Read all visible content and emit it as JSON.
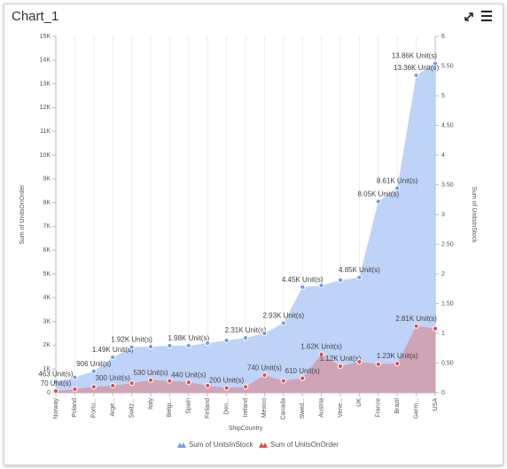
{
  "chart_data": {
    "type": "area",
    "title": "Chart_1",
    "x_label": "ShipCountry",
    "y_label": "Sum of UnitsOnOrder",
    "y2_label": "Sum of UnitsInStock",
    "categories": [
      "Norway",
      "Poland",
      "Portu...",
      "Arge...",
      "Switz...",
      "Italy",
      "Belgi...",
      "Spain",
      "Finland",
      "Den...",
      "Ireland",
      "Mexico",
      "Canada",
      "Swed...",
      "Austria",
      "Vene...",
      "UK",
      "France",
      "Brazil",
      "Germ...",
      "USA"
    ],
    "series": [
      {
        "name": "Sum of UnitsInStock",
        "color": "#6f9ced",
        "fill": "#b8cdf6",
        "values": [
          463,
          650,
          906,
          1490,
          1920,
          1940,
          1980,
          1980,
          2090,
          2200,
          2310,
          2500,
          2930,
          4450,
          4515,
          4740,
          4850,
          8050,
          8610,
          13360,
          13860
        ],
        "value_labels": [
          "463 Unit(s)",
          null,
          "906 Unit(s)",
          "1.49K Unit(s)",
          "1.92K Unit(s)",
          null,
          null,
          "1.98K Unit(s)",
          null,
          null,
          "2.31K Unit(s)",
          null,
          "2.93K Unit(s)",
          "4.45K Unit(s)",
          null,
          null,
          "4.85K Unit(s)",
          "8.05K Unit(s)",
          "8.61K Unit(s)",
          "13.36K Unit(s)",
          "13.86K Unit(s)"
        ]
      },
      {
        "name": "Sum of UnitsOnOrder",
        "color": "#e04c4c",
        "fill": "#cf9fae",
        "values": [
          70,
          150,
          250,
          300,
          400,
          530,
          500,
          440,
          300,
          200,
          250,
          740,
          500,
          610,
          1620,
          1120,
          1300,
          1200,
          1230,
          2810,
          2700
        ],
        "value_labels": [
          "70 Unit(s)",
          null,
          null,
          "300 Unit(s)",
          null,
          "530 Unit(s)",
          null,
          "440 Unit(s)",
          null,
          "200 Unit(s)",
          null,
          "740 Unit(s)",
          null,
          "610 Unit(s)",
          "1.62K Unit(s)",
          "1.12K Unit(s)",
          null,
          null,
          "1.23K Unit(s)",
          "2.81K Unit(s)",
          null
        ]
      }
    ],
    "ylim": [
      0,
      15000
    ],
    "yticks": [
      0,
      {
        "value": 1000,
        "label": "1K"
      },
      {
        "value": 2000,
        "label": "2K"
      },
      {
        "value": 3000,
        "label": "3K"
      },
      {
        "value": 4000,
        "label": "4K"
      },
      {
        "value": 5000,
        "label": "5K"
      },
      {
        "value": 6000,
        "label": "6K"
      },
      {
        "value": 7000,
        "label": "7K"
      },
      {
        "value": 8000,
        "label": "8K"
      },
      {
        "value": 9000,
        "label": "9K"
      },
      {
        "value": 10000,
        "label": "10K"
      },
      {
        "value": 11000,
        "label": "11K"
      },
      {
        "value": 12000,
        "label": "12K"
      },
      {
        "value": 13000,
        "label": "13K"
      },
      {
        "value": 14000,
        "label": "14K"
      },
      {
        "value": 15000,
        "label": "15K"
      }
    ],
    "y2lim": [
      0,
      6
    ],
    "y2ticks": [
      0,
      {
        "value": 0.5,
        "label": "0.50"
      },
      1,
      {
        "value": 1.5,
        "label": "1.50"
      },
      2,
      {
        "value": 2.5,
        "label": "2.50"
      },
      3,
      {
        "value": 3.5,
        "label": "3.50"
      },
      4,
      {
        "value": 4.5,
        "label": "4.50"
      },
      5,
      {
        "value": 5.5,
        "label": "5.50"
      },
      6
    ]
  }
}
